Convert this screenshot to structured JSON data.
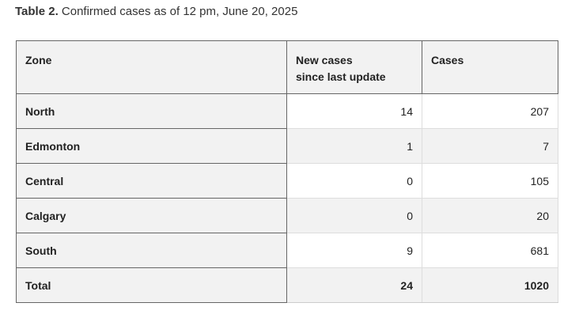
{
  "caption": {
    "label": "Table 2.",
    "text": " Confirmed cases as of 12 pm, June 20, 2025"
  },
  "table": {
    "headers": {
      "zone": "Zone",
      "new_cases_line1": "New cases",
      "new_cases_line2": "since last update",
      "cases": "Cases"
    },
    "rows": [
      {
        "zone": "North",
        "new_cases": "14",
        "cases": "207"
      },
      {
        "zone": "Edmonton",
        "new_cases": "1",
        "cases": "7"
      },
      {
        "zone": "Central",
        "new_cases": "0",
        "cases": "105"
      },
      {
        "zone": "Calgary",
        "new_cases": "0",
        "cases": "20"
      },
      {
        "zone": "South",
        "new_cases": "9",
        "cases": "681"
      }
    ],
    "total": {
      "zone": "Total",
      "new_cases": "24",
      "cases": "1020"
    }
  }
}
